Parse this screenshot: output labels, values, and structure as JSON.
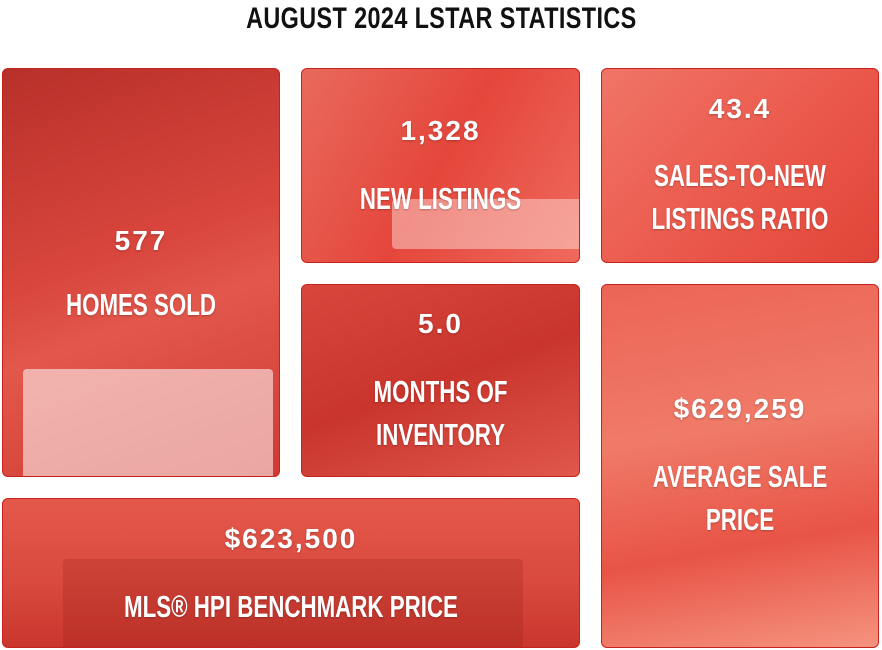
{
  "header": {
    "title": "AUGUST 2024 LSTAR STATISTICS"
  },
  "tiles": [
    {
      "value": "577",
      "label": [
        "HOMES SOLD"
      ]
    },
    {
      "value": "1,328",
      "label": [
        "NEW LISTINGS"
      ]
    },
    {
      "value": "43.4",
      "label": [
        "SALES-TO-NEW",
        "LISTINGS RATIO"
      ]
    },
    {
      "value": "5.0",
      "label": [
        "MONTHS OF",
        "INVENTORY"
      ]
    },
    {
      "value": "$629,259",
      "label": [
        "AVERAGE SALE",
        "PRICE"
      ]
    },
    {
      "value": "$623,500",
      "label": [
        "MLS® HPI BENCHMARK PRICE"
      ]
    }
  ]
}
